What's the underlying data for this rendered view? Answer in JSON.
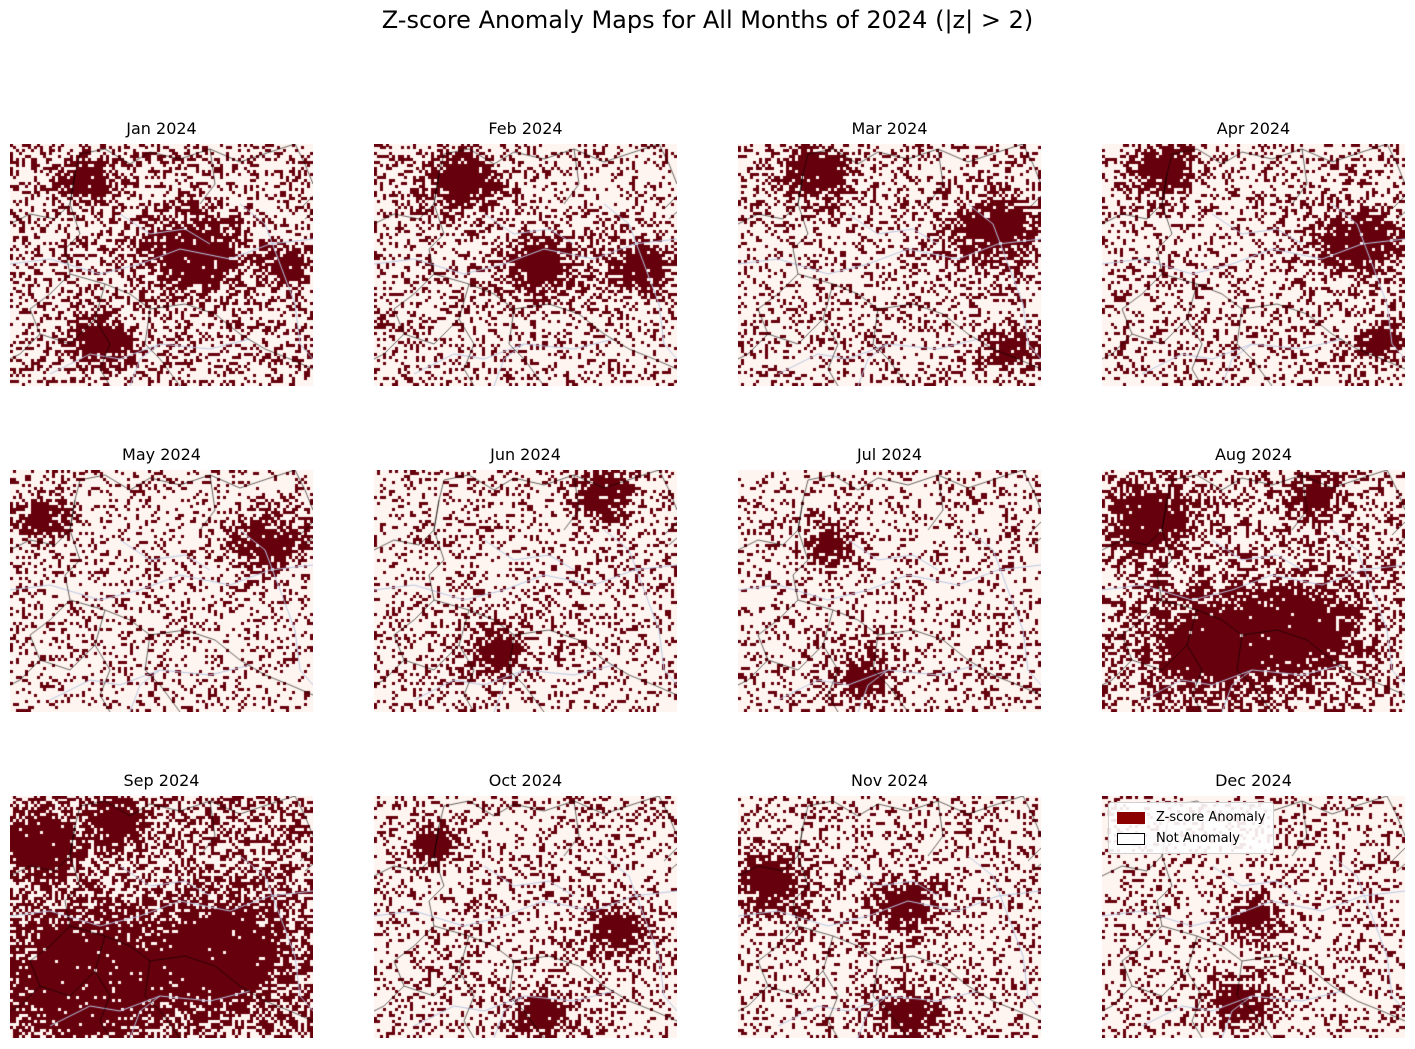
{
  "chart_data": {
    "type": "heatmap",
    "title": "Z-score Anomaly Maps for All Months of 2024 (|z| > 2)",
    "panels": [
      {
        "title": "Jan 2024",
        "anomaly_fraction": 0.36,
        "hotspots": [
          [
            0.6,
            0.45,
            0.16
          ],
          [
            0.25,
            0.15,
            0.1
          ],
          [
            0.3,
            0.8,
            0.1
          ],
          [
            0.92,
            0.5,
            0.08
          ]
        ]
      },
      {
        "title": "Feb 2024",
        "anomaly_fraction": 0.3,
        "hotspots": [
          [
            0.3,
            0.15,
            0.12
          ],
          [
            0.88,
            0.5,
            0.1
          ],
          [
            0.55,
            0.5,
            0.12
          ]
        ]
      },
      {
        "title": "Mar 2024",
        "anomaly_fraction": 0.3,
        "hotspots": [
          [
            0.85,
            0.35,
            0.14
          ],
          [
            0.25,
            0.12,
            0.12
          ],
          [
            0.9,
            0.85,
            0.08
          ]
        ]
      },
      {
        "title": "Apr 2024",
        "anomaly_fraction": 0.3,
        "hotspots": [
          [
            0.85,
            0.4,
            0.14
          ],
          [
            0.2,
            0.1,
            0.1
          ],
          [
            0.92,
            0.8,
            0.08
          ]
        ]
      },
      {
        "title": "May 2024",
        "anomaly_fraction": 0.27,
        "hotspots": [
          [
            0.85,
            0.3,
            0.12
          ],
          [
            0.1,
            0.2,
            0.08
          ]
        ]
      },
      {
        "title": "Jun 2024",
        "anomaly_fraction": 0.28,
        "hotspots": [
          [
            0.4,
            0.75,
            0.1
          ],
          [
            0.75,
            0.1,
            0.1
          ]
        ]
      },
      {
        "title": "Jul 2024",
        "anomaly_fraction": 0.26,
        "hotspots": [
          [
            0.4,
            0.85,
            0.1
          ],
          [
            0.3,
            0.3,
            0.08
          ]
        ]
      },
      {
        "title": "Aug 2024",
        "anomaly_fraction": 0.38,
        "hotspots": [
          [
            0.35,
            0.72,
            0.2
          ],
          [
            0.65,
            0.65,
            0.18
          ],
          [
            0.15,
            0.2,
            0.14
          ],
          [
            0.7,
            0.1,
            0.08
          ]
        ]
      },
      {
        "title": "Sep 2024",
        "anomaly_fraction": 0.55,
        "hotspots": [
          [
            0.25,
            0.75,
            0.25
          ],
          [
            0.72,
            0.65,
            0.2
          ],
          [
            0.1,
            0.2,
            0.12
          ],
          [
            0.35,
            0.1,
            0.08
          ]
        ]
      },
      {
        "title": "Oct 2024",
        "anomaly_fraction": 0.28,
        "hotspots": [
          [
            0.55,
            0.9,
            0.1
          ],
          [
            0.8,
            0.55,
            0.1
          ],
          [
            0.2,
            0.2,
            0.08
          ]
        ]
      },
      {
        "title": "Nov 2024",
        "anomaly_fraction": 0.28,
        "hotspots": [
          [
            0.1,
            0.35,
            0.12
          ],
          [
            0.55,
            0.45,
            0.1
          ],
          [
            0.55,
            0.9,
            0.1
          ]
        ]
      },
      {
        "title": "Dec 2024",
        "anomaly_fraction": 0.26,
        "hotspots": [
          [
            0.45,
            0.85,
            0.1
          ],
          [
            0.5,
            0.5,
            0.08
          ]
        ]
      }
    ],
    "legend": {
      "placement": "upper-left of Dec 2024 panel",
      "entries": [
        {
          "label": "Z-score Anomaly",
          "color": "#8b0000"
        },
        {
          "label": "Not Anomaly",
          "color": "#ffffff"
        }
      ]
    },
    "colors": {
      "anomaly": "#67000d",
      "not_anomaly": "#fff5f0",
      "borders": "#000000",
      "rivers": "#b8c8e6"
    },
    "axes": "off",
    "grid": false
  }
}
